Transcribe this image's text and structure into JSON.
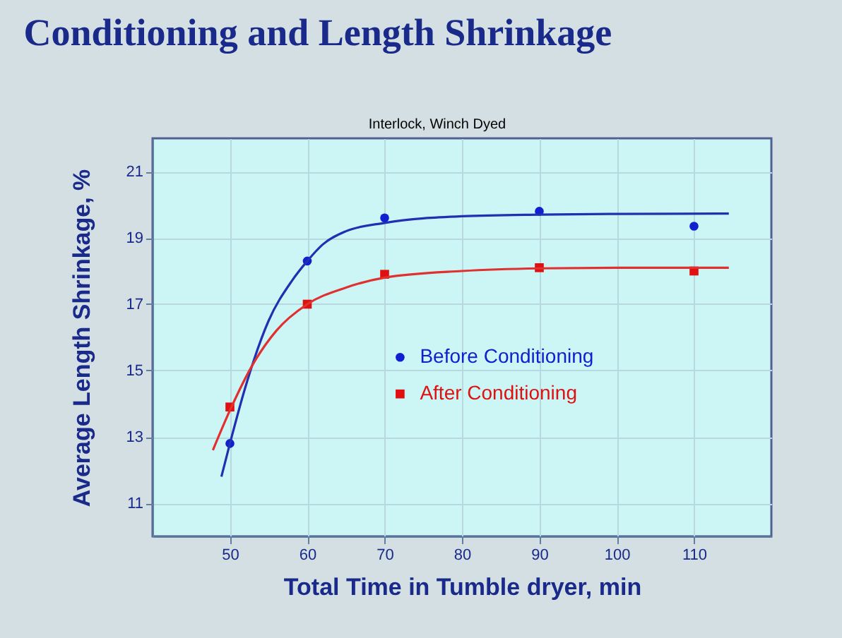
{
  "chart_data": {
    "type": "scatter",
    "title": "Conditioning and Length Shrinkage",
    "xlabel": "Total Time in Tumble dryer,  min",
    "ylabel": "Average Length Shrinkage,  %",
    "annotations": [
      "Interlock, Winch Dyed"
    ],
    "xlim": [
      40,
      120
    ],
    "xticks": [
      50,
      60,
      70,
      80,
      90,
      100,
      110
    ],
    "ylim": [
      10,
      22
    ],
    "yticks": [
      11,
      13,
      15,
      17,
      19,
      21
    ],
    "grid": true,
    "legend": "right",
    "series": [
      {
        "name": "Before Conditioning",
        "color": "#1020d0",
        "marker": "circle",
        "x": [
          50,
          60,
          70,
          90,
          110
        ],
        "values": [
          12.8,
          18.3,
          19.6,
          19.8,
          19.35
        ]
      },
      {
        "name": "After Conditioning",
        "color": "#e01010",
        "marker": "square",
        "x": [
          50,
          60,
          70,
          90,
          110
        ],
        "values": [
          13.9,
          17.0,
          17.9,
          18.1,
          18.0
        ]
      },
      {
        "type": "line",
        "color": "#2030b0",
        "line_style": "solid",
        "x": [
          48.9,
          50,
          52,
          55,
          58,
          60,
          62,
          65,
          70,
          80,
          90,
          100,
          114.5
        ],
        "values": [
          11.8,
          12.8,
          14.5,
          16.5,
          17.7,
          18.3,
          18.8,
          19.2,
          19.45,
          19.65,
          19.7,
          19.72,
          19.73
        ]
      },
      {
        "type": "line",
        "color": "#e03030",
        "line_style": "solid",
        "x": [
          47.8,
          50,
          53,
          56,
          60,
          65,
          70,
          80,
          90,
          100,
          114.5
        ],
        "values": [
          12.6,
          13.8,
          15.2,
          16.2,
          17.0,
          17.5,
          17.8,
          18.0,
          18.08,
          18.1,
          18.1
        ]
      }
    ]
  }
}
